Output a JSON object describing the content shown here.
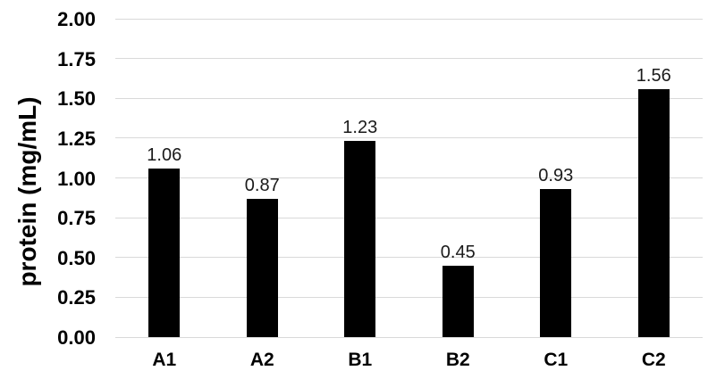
{
  "chart_data": {
    "type": "bar",
    "title": "",
    "categories": [
      "A1",
      "A2",
      "B1",
      "B2",
      "C1",
      "C2"
    ],
    "values": [
      1.06,
      0.87,
      1.23,
      0.45,
      0.93,
      1.56
    ],
    "value_labels": [
      "1.06",
      "0.87",
      "1.23",
      "0.45",
      "0.93",
      "1.56"
    ],
    "xlabel": "",
    "ylabel": "protein (mg/mL)",
    "ylim": [
      0,
      2
    ],
    "ytick_step": 0.25,
    "ytick_labels": [
      "0.00",
      "0.25",
      "0.50",
      "0.75",
      "1.00",
      "1.25",
      "1.50",
      "1.75",
      "2.00"
    ],
    "grid": true,
    "legend": false,
    "colors": {
      "bar": "#000000",
      "gridline": "#d9d9d9",
      "value_label": "#1a1a1a",
      "axis_text": "#000000",
      "background": "#ffffff"
    }
  }
}
